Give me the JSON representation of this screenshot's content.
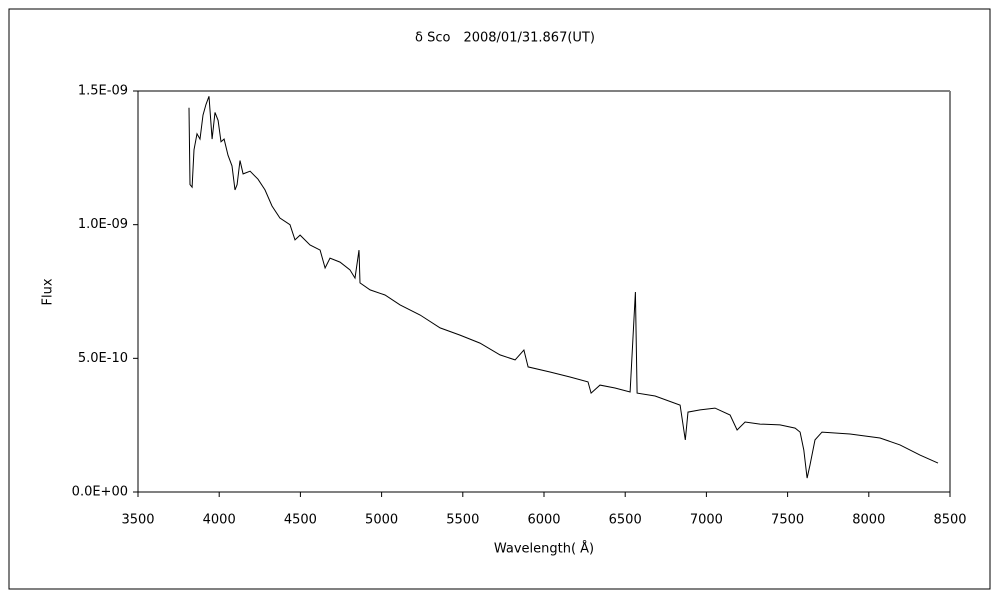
{
  "chart_data": {
    "type": "line",
    "title": "δ Sco　2008/01/31.867(UT)",
    "x_label": "Wavelength( Å)",
    "y_label": "Flux",
    "x": [
      3814,
      3820,
      3833,
      3845,
      3863,
      3882,
      3900,
      3919,
      3937,
      3956,
      3974,
      3993,
      4011,
      4030,
      4054,
      4079,
      4097,
      4110,
      4128,
      4147,
      4190,
      4239,
      4282,
      4325,
      4374,
      4436,
      4467,
      4498,
      4559,
      4621,
      4652,
      4682,
      4744,
      4805,
      4836,
      4861,
      4867,
      4929,
      5021,
      5114,
      5237,
      5360,
      5483,
      5606,
      5729,
      5822,
      5876,
      5902,
      6037,
      6160,
      6271,
      6290,
      6345,
      6437,
      6530,
      6563,
      6573,
      6684,
      6838,
      6870,
      6887,
      6961,
      7053,
      7146,
      7189,
      7238,
      7330,
      7453,
      7546,
      7577,
      7600,
      7620,
      7638,
      7669,
      7712,
      7884,
      8069,
      8192,
      8315,
      8426
    ],
    "series": [
      {
        "name": "Flux",
        "color": "#000000",
        "values": [
          1.437e-09,
          1.15e-09,
          1.14e-09,
          1.28e-09,
          1.34e-09,
          1.32e-09,
          1.41e-09,
          1.45e-09,
          1.48e-09,
          1.32e-09,
          1.42e-09,
          1.39e-09,
          1.31e-09,
          1.32e-09,
          1.26e-09,
          1.22e-09,
          1.13e-09,
          1.15e-09,
          1.24e-09,
          1.19e-09,
          1.2e-09,
          1.17e-09,
          1.13e-09,
          1.07e-09,
          1.025e-09,
          1e-09,
          9.43e-10,
          9.61e-10,
          9.24e-10,
          9.05e-10,
          8.38e-10,
          8.75e-10,
          8.6e-10,
          8.31e-10,
          8e-10,
          9.05e-10,
          7.82e-10,
          7.56e-10,
          7.37e-10,
          7e-10,
          6.62e-10,
          6.14e-10,
          5.87e-10,
          5.57e-10,
          5.13e-10,
          4.94e-10,
          5.31e-10,
          4.68e-10,
          4.49e-10,
          4.3e-10,
          4.12e-10,
          3.7e-10,
          4e-10,
          3.89e-10,
          3.74e-10,
          7.48e-10,
          3.7e-10,
          3.59e-10,
          3.25e-10,
          1.95e-10,
          2.99e-10,
          3.07e-10,
          3.14e-10,
          2.88e-10,
          2.32e-10,
          2.62e-10,
          2.54e-10,
          2.51e-10,
          2.39e-10,
          2.24e-10,
          1.57e-10,
          5.2e-11,
          1.01e-10,
          1.95e-10,
          2.24e-10,
          2.17e-10,
          2.02e-10,
          1.76e-10,
          1.38e-10,
          1.08e-10
        ]
      }
    ],
    "xlim": [
      3500,
      8500
    ],
    "xticks": [
      3500,
      4000,
      4500,
      5000,
      5500,
      6000,
      6500,
      7000,
      7500,
      8000,
      8500
    ],
    "ylim": [
      0,
      1.5e-09
    ],
    "yticks": [
      {
        "value": 0,
        "label": "0.0E+00"
      },
      {
        "value": 5e-10,
        "label": "5.0E-10"
      },
      {
        "value": 1e-09,
        "label": "1.0E-09"
      },
      {
        "value": 1.5e-09,
        "label": "1.5E-09"
      }
    ],
    "grid": false
  }
}
